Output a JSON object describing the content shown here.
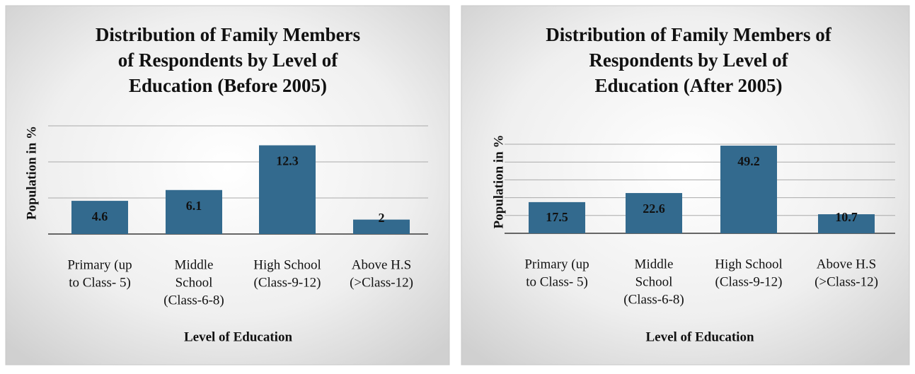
{
  "chart_data": [
    {
      "type": "bar",
      "title": [
        "Distribution of Family Members",
        "of Respondents by Level of",
        "Education (Before 2005)"
      ],
      "ylabel": "Population in %",
      "xlabel": "Level of Education",
      "categories": [
        [
          "Primary (up",
          "to Class- 5)"
        ],
        [
          "Middle",
          "School",
          "(Class-6-8)"
        ],
        [
          "High School",
          "(Class-9-12)"
        ],
        [
          "Above H.S",
          "(>Class-12)"
        ]
      ],
      "values": [
        4.6,
        6.1,
        12.3,
        2
      ],
      "color": "#336a8e",
      "ylim": [
        0,
        15
      ],
      "yticks": [
        0,
        5,
        10,
        15
      ],
      "grid": true
    },
    {
      "type": "bar",
      "title": [
        "Distribution of Family Members of",
        "Respondents by Level of",
        "Education (After 2005)"
      ],
      "ylabel": "Population in %",
      "xlabel": "Level of Education",
      "categories": [
        [
          "Primary (up",
          "to Class- 5)"
        ],
        [
          "Middle",
          "School",
          "(Class-6-8)"
        ],
        [
          "High School",
          "(Class-9-12)"
        ],
        [
          "Above H.S",
          "(>Class-12)"
        ]
      ],
      "values": [
        17.5,
        22.6,
        49.2,
        10.7
      ],
      "color": "#336a8e",
      "ylim": [
        0,
        50
      ],
      "yticks": [
        0,
        10,
        20,
        30,
        40,
        50
      ],
      "grid": true
    }
  ]
}
